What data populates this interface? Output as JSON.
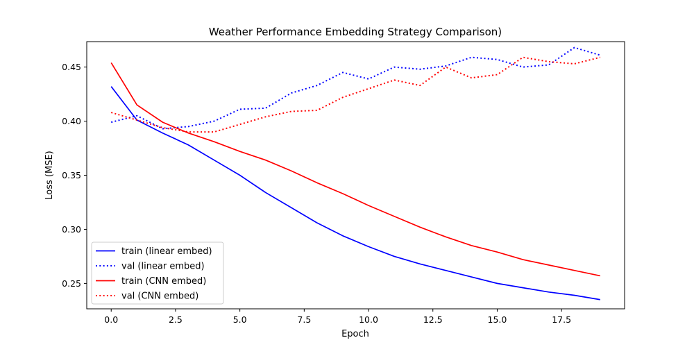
{
  "chart_data": {
    "type": "line",
    "title": "Weather Performance Embedding Strategy Comparison)",
    "xlabel": "Epoch",
    "ylabel": "Loss (MSE)",
    "xlim": [
      -0.95,
      19.95
    ],
    "ylim": [
      0.2265,
      0.4735
    ],
    "xticks": [
      "0.0",
      "2.5",
      "5.0",
      "7.5",
      "10.0",
      "12.5",
      "15.0",
      "17.5"
    ],
    "yticks": [
      "0.25",
      "0.30",
      "0.35",
      "0.40",
      "0.45"
    ],
    "x": [
      0,
      1,
      2,
      3,
      4,
      5,
      6,
      7,
      8,
      9,
      10,
      11,
      12,
      13,
      14,
      15,
      16,
      17,
      18,
      19
    ],
    "legend_position": "lower-left",
    "grid": false,
    "series": [
      {
        "name": "train (linear embed)",
        "color": "#0000ff",
        "style": "solid",
        "values": [
          0.432,
          0.401,
          0.389,
          0.378,
          0.364,
          0.35,
          0.334,
          0.32,
          0.306,
          0.294,
          0.284,
          0.275,
          0.268,
          0.262,
          0.256,
          0.25,
          0.246,
          0.242,
          0.239,
          0.235
        ]
      },
      {
        "name": "val (linear embed)",
        "color": "#0000ff",
        "style": "dotted",
        "values": [
          0.399,
          0.405,
          0.393,
          0.395,
          0.4,
          0.411,
          0.412,
          0.426,
          0.433,
          0.445,
          0.439,
          0.45,
          0.448,
          0.451,
          0.459,
          0.457,
          0.45,
          0.452,
          0.468,
          0.461
        ]
      },
      {
        "name": "train (CNN embed)",
        "color": "#ff0000",
        "style": "solid",
        "values": [
          0.454,
          0.415,
          0.399,
          0.389,
          0.381,
          0.372,
          0.364,
          0.354,
          0.343,
          0.333,
          0.322,
          0.312,
          0.302,
          0.293,
          0.285,
          0.279,
          0.272,
          0.267,
          0.262,
          0.257
        ]
      },
      {
        "name": "val (CNN embed)",
        "color": "#ff0000",
        "style": "dotted",
        "values": [
          0.408,
          0.401,
          0.394,
          0.39,
          0.39,
          0.397,
          0.404,
          0.409,
          0.41,
          0.422,
          0.43,
          0.438,
          0.433,
          0.45,
          0.44,
          0.443,
          0.459,
          0.455,
          0.453,
          0.459
        ]
      }
    ]
  }
}
